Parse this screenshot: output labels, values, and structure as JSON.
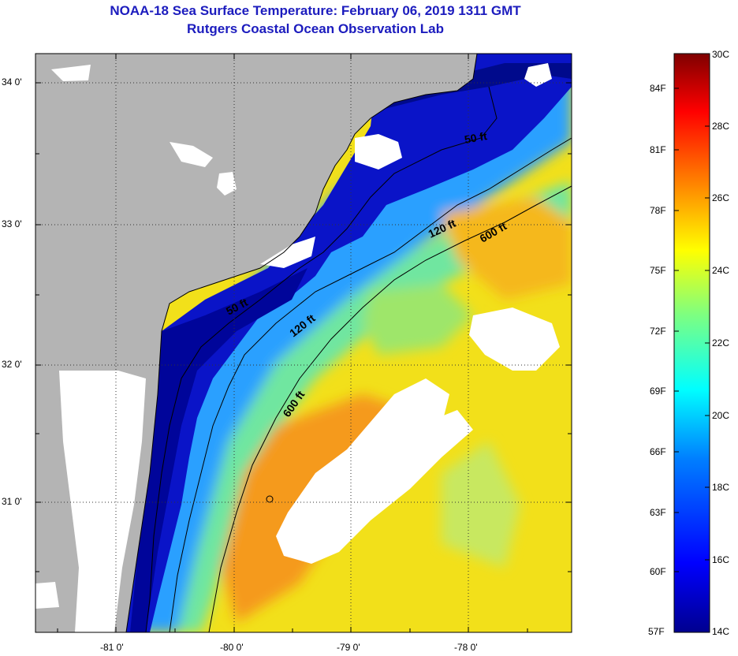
{
  "title": "NOAA-18 Sea Surface Temperature:  February 06, 2019 1311 GMT",
  "subtitle": "Rutgers Coastal Ocean Observation Lab",
  "map": {
    "lat_labels": [
      "34 0'",
      "33 0'",
      "32 0'",
      "31 0'"
    ],
    "lon_labels": [
      "-81 0'",
      "-80 0'",
      "-79 0'",
      "-78 0'"
    ],
    "grid_lines": "dotted",
    "land_color": "#b4b4b4",
    "cloud_color": "#ffffff",
    "contours": [
      "50 ft",
      "50 ft",
      "120 ft",
      "120 ft",
      "600 ft",
      "600 ft"
    ]
  },
  "colorbar": {
    "fahrenheit_labels": [
      "84F",
      "81F",
      "78F",
      "75F",
      "72F",
      "69F",
      "66F",
      "63F",
      "60F",
      "57F"
    ],
    "celsius_labels": [
      "30C",
      "28C",
      "26C",
      "24C",
      "22C",
      "20C",
      "18C",
      "16C",
      "14C"
    ],
    "range_c": [
      14,
      30
    ],
    "colors": [
      "#00008f",
      "#0000ff",
      "#007fff",
      "#00ffff",
      "#7fff7f",
      "#ffff00",
      "#ff7f00",
      "#ff0000",
      "#7f0000"
    ]
  }
}
